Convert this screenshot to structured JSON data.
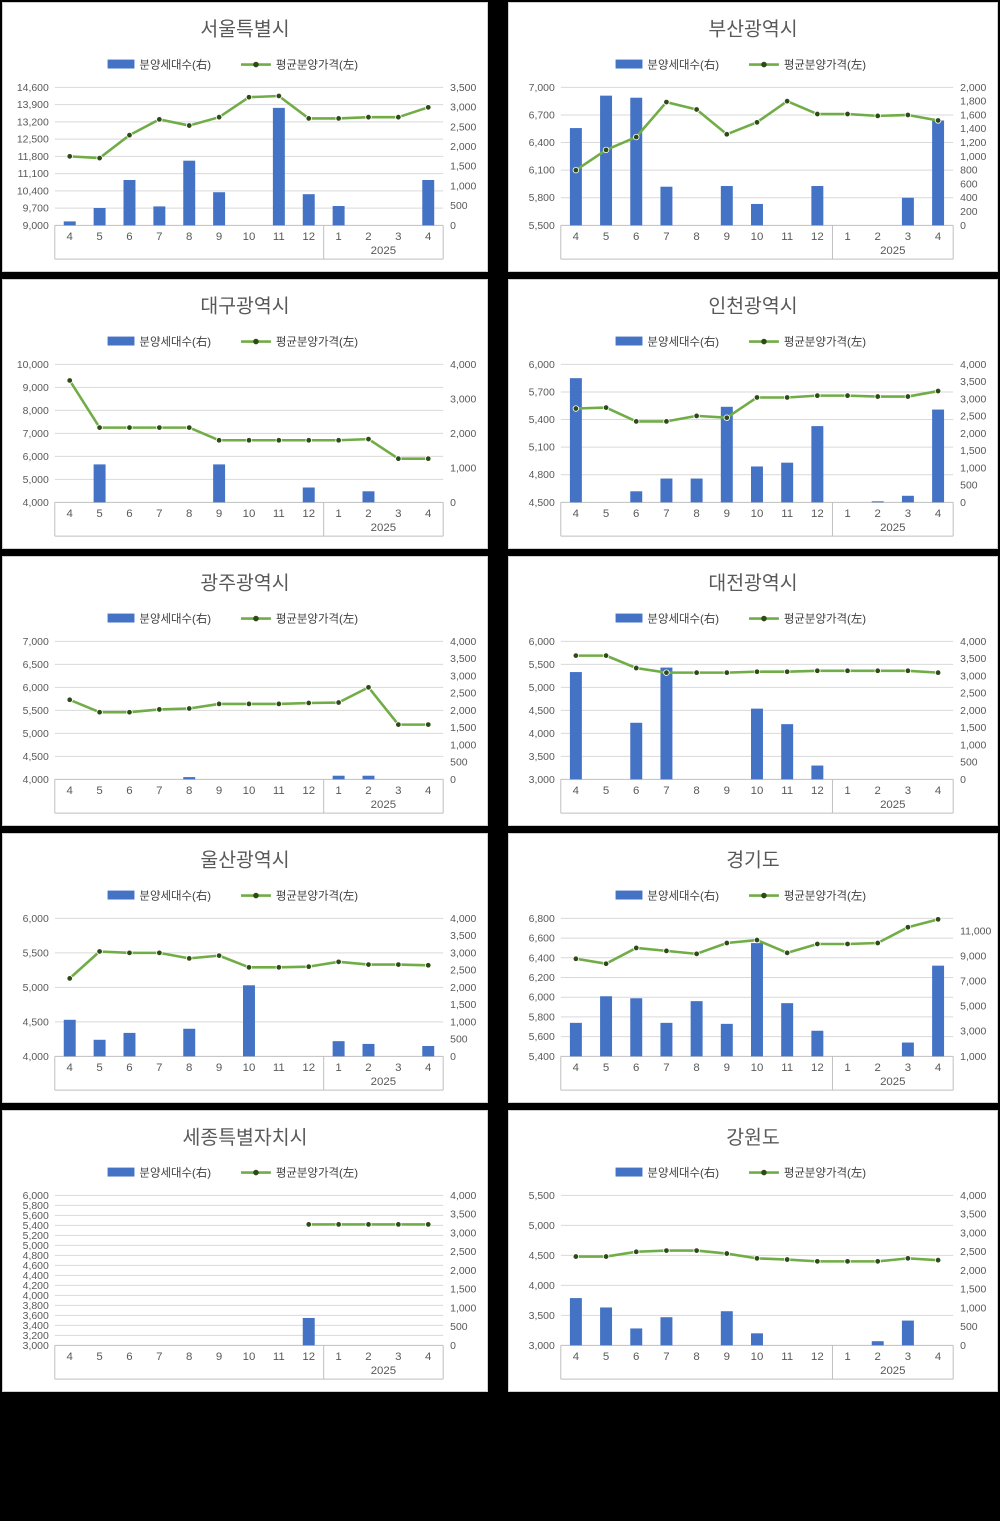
{
  "page": {
    "background": "#000000"
  },
  "legend": {
    "bars_label": "분양세대수(右)",
    "line_label": "평균분양가격(左)"
  },
  "colors": {
    "bar": "#4472C4",
    "line": "#70AD47",
    "marker": "#2d4a17",
    "grid": "#d9d9d9",
    "axis_line": "#bfbfbf",
    "text": "#595959",
    "panel_bg": "#ffffff"
  },
  "chart_data": [
    {
      "type": "bar",
      "title": "서울특별시",
      "categories": [
        "4",
        "5",
        "6",
        "7",
        "8",
        "9",
        "10",
        "11",
        "12",
        "1",
        "2",
        "3",
        "4"
      ],
      "group_label": "2025",
      "group_start_index": 9,
      "left_axis": {
        "min": 9000,
        "max": 14600,
        "step": 700
      },
      "right_axis": {
        "min": 0,
        "max": 3500,
        "step": 500
      },
      "series": [
        {
          "name": "분양세대수(右)",
          "type": "bar",
          "axis": "right",
          "values": [
            100,
            440,
            1150,
            480,
            1640,
            840,
            0,
            2980,
            790,
            490,
            0,
            0,
            1150
          ]
        },
        {
          "name": "평균분양가격(左)",
          "type": "line",
          "axis": "left",
          "values": [
            11800,
            11730,
            12660,
            13300,
            13050,
            13390,
            14200,
            14250,
            13340,
            13340,
            13390,
            13390,
            13790
          ]
        }
      ]
    },
    {
      "type": "bar",
      "title": "부산광역시",
      "categories": [
        "4",
        "5",
        "6",
        "7",
        "8",
        "9",
        "10",
        "11",
        "12",
        "1",
        "2",
        "3",
        "4"
      ],
      "group_label": "2025",
      "group_start_index": 9,
      "left_axis": {
        "min": 5500,
        "max": 7000,
        "step": 300
      },
      "right_axis": {
        "min": 0,
        "max": 2000,
        "step": 200
      },
      "series": [
        {
          "name": "분양세대수(右)",
          "type": "bar",
          "axis": "right",
          "values": [
            1410,
            1880,
            1850,
            560,
            0,
            570,
            310,
            0,
            570,
            0,
            0,
            400,
            1520
          ]
        },
        {
          "name": "평균분양가격(左)",
          "type": "line",
          "axis": "left",
          "values": [
            6100,
            6320,
            6460,
            6840,
            6760,
            6490,
            6620,
            6850,
            6710,
            6710,
            6690,
            6700,
            6640
          ]
        }
      ]
    },
    {
      "type": "bar",
      "title": "대구광역시",
      "categories": [
        "4",
        "5",
        "6",
        "7",
        "8",
        "9",
        "10",
        "11",
        "12",
        "1",
        "2",
        "3",
        "4"
      ],
      "group_label": "2025",
      "group_start_index": 9,
      "left_axis": {
        "min": 4000,
        "max": 10000,
        "step": 1000
      },
      "right_axis": {
        "min": 0,
        "max": 4000,
        "step": 1000
      },
      "series": [
        {
          "name": "분양세대수(右)",
          "type": "bar",
          "axis": "right",
          "values": [
            0,
            1100,
            0,
            0,
            0,
            1100,
            0,
            0,
            430,
            0,
            320,
            0,
            0
          ]
        },
        {
          "name": "평균분양가격(左)",
          "type": "line",
          "axis": "left",
          "values": [
            9300,
            7250,
            7250,
            7250,
            7250,
            6700,
            6700,
            6700,
            6700,
            6700,
            6750,
            5900,
            5900
          ]
        }
      ]
    },
    {
      "type": "bar",
      "title": "인천광역시",
      "categories": [
        "4",
        "5",
        "6",
        "7",
        "8",
        "9",
        "10",
        "11",
        "12",
        "1",
        "2",
        "3",
        "4"
      ],
      "group_label": "2025",
      "group_start_index": 9,
      "left_axis": {
        "min": 4500,
        "max": 6000,
        "step": 300
      },
      "right_axis": {
        "min": 0,
        "max": 4000,
        "step": 500
      },
      "series": [
        {
          "name": "분양세대수(右)",
          "type": "bar",
          "axis": "right",
          "values": [
            3600,
            0,
            320,
            690,
            690,
            2770,
            1040,
            1150,
            2210,
            0,
            30,
            190,
            2690
          ]
        },
        {
          "name": "평균분양가격(左)",
          "type": "line",
          "axis": "left",
          "values": [
            5520,
            5530,
            5380,
            5380,
            5440,
            5420,
            5640,
            5640,
            5660,
            5660,
            5650,
            5650,
            5710
          ]
        }
      ]
    },
    {
      "type": "bar",
      "title": "광주광역시",
      "categories": [
        "4",
        "5",
        "6",
        "7",
        "8",
        "9",
        "10",
        "11",
        "12",
        "1",
        "2",
        "3",
        "4"
      ],
      "group_label": "2025",
      "group_start_index": 9,
      "left_axis": {
        "min": 4000,
        "max": 7000,
        "step": 500
      },
      "right_axis": {
        "min": 0,
        "max": 4000,
        "step": 500
      },
      "series": [
        {
          "name": "분양세대수(右)",
          "type": "bar",
          "axis": "right",
          "values": [
            0,
            0,
            0,
            0,
            65,
            0,
            0,
            0,
            0,
            105,
            105,
            0,
            0
          ]
        },
        {
          "name": "평균분양가격(左)",
          "type": "line",
          "axis": "left",
          "values": [
            5730,
            5460,
            5460,
            5520,
            5540,
            5640,
            5640,
            5640,
            5660,
            5670,
            6000,
            5190,
            5190
          ]
        }
      ]
    },
    {
      "type": "bar",
      "title": "대전광역시",
      "categories": [
        "4",
        "5",
        "6",
        "7",
        "8",
        "9",
        "10",
        "11",
        "12",
        "1",
        "2",
        "3",
        "4"
      ],
      "group_label": "2025",
      "group_start_index": 9,
      "left_axis": {
        "min": 3000,
        "max": 6000,
        "step": 500
      },
      "right_axis": {
        "min": 0,
        "max": 4000,
        "step": 500
      },
      "series": [
        {
          "name": "분양세대수(右)",
          "type": "bar",
          "axis": "right",
          "values": [
            3110,
            0,
            1640,
            3240,
            0,
            0,
            2050,
            1600,
            400,
            0,
            0,
            0,
            0
          ]
        },
        {
          "name": "평균분양가격(左)",
          "type": "line",
          "axis": "left",
          "values": [
            5690,
            5690,
            5420,
            5320,
            5320,
            5320,
            5340,
            5340,
            5360,
            5360,
            5360,
            5360,
            5320
          ]
        }
      ]
    },
    {
      "type": "bar",
      "title": "울산광역시",
      "categories": [
        "4",
        "5",
        "6",
        "7",
        "8",
        "9",
        "10",
        "11",
        "12",
        "1",
        "2",
        "3",
        "4"
      ],
      "group_label": "2025",
      "group_start_index": 9,
      "left_axis": {
        "min": 4000,
        "max": 6000,
        "step": 500
      },
      "right_axis": {
        "min": 0,
        "max": 4000,
        "step": 500
      },
      "series": [
        {
          "name": "분양세대수(右)",
          "type": "bar",
          "axis": "right",
          "values": [
            1060,
            480,
            680,
            0,
            800,
            0,
            2060,
            0,
            0,
            440,
            360,
            0,
            300
          ]
        },
        {
          "name": "평균분양가격(左)",
          "type": "line",
          "axis": "left",
          "values": [
            5130,
            5520,
            5500,
            5500,
            5420,
            5460,
            5290,
            5290,
            5300,
            5370,
            5330,
            5330,
            5320
          ]
        }
      ]
    },
    {
      "type": "bar",
      "title": "경기도",
      "categories": [
        "4",
        "5",
        "6",
        "7",
        "8",
        "9",
        "10",
        "11",
        "12",
        "1",
        "2",
        "3",
        "4"
      ],
      "group_label": "2025",
      "group_start_index": 9,
      "left_axis": {
        "min": 5400,
        "max": 6800,
        "step": 200
      },
      "right_axis": {
        "min": 1000,
        "max": 12000,
        "step": 2000,
        "ticks": [
          1000,
          3000,
          5000,
          7000,
          9000,
          11000
        ]
      },
      "series": [
        {
          "name": "분양세대수(右)",
          "type": "bar",
          "axis": "right",
          "values": [
            3670,
            5790,
            5630,
            3670,
            5400,
            3590,
            10030,
            5240,
            3040,
            0,
            0,
            2100,
            8230
          ]
        },
        {
          "name": "평균분양가격(左)",
          "type": "line",
          "axis": "left",
          "values": [
            6390,
            6340,
            6500,
            6470,
            6440,
            6550,
            6580,
            6450,
            6540,
            6540,
            6550,
            6710,
            6790
          ]
        }
      ]
    },
    {
      "type": "bar",
      "title": "세종특별자치시",
      "categories": [
        "4",
        "5",
        "6",
        "7",
        "8",
        "9",
        "10",
        "11",
        "12",
        "1",
        "2",
        "3",
        "4"
      ],
      "group_label": "2025",
      "group_start_index": 9,
      "left_axis": {
        "min": 3000,
        "max": 6000,
        "step": 200
      },
      "right_axis": {
        "min": 0,
        "max": 4000,
        "step": 500
      },
      "series": [
        {
          "name": "분양세대수(右)",
          "type": "bar",
          "axis": "right",
          "values": [
            0,
            0,
            0,
            0,
            0,
            0,
            0,
            0,
            730,
            0,
            0,
            0,
            0
          ]
        },
        {
          "name": "평균분양가격(左)",
          "type": "line",
          "axis": "left",
          "values": [
            null,
            null,
            null,
            null,
            null,
            null,
            null,
            null,
            5420,
            5420,
            5420,
            5420,
            5420
          ]
        }
      ]
    },
    {
      "type": "bar",
      "title": "강원도",
      "categories": [
        "4",
        "5",
        "6",
        "7",
        "8",
        "9",
        "10",
        "11",
        "12",
        "1",
        "2",
        "3",
        "4"
      ],
      "group_label": "2025",
      "group_start_index": 9,
      "left_axis": {
        "min": 3000,
        "max": 5500,
        "step": 500
      },
      "right_axis": {
        "min": 0,
        "max": 4000,
        "step": 500
      },
      "series": [
        {
          "name": "분양세대수(右)",
          "type": "bar",
          "axis": "right",
          "values": [
            1260,
            1010,
            450,
            750,
            0,
            910,
            320,
            0,
            0,
            0,
            110,
            660,
            0
          ]
        },
        {
          "name": "평균분양가격(左)",
          "type": "line",
          "axis": "left",
          "values": [
            4480,
            4480,
            4560,
            4580,
            4580,
            4530,
            4450,
            4430,
            4400,
            4400,
            4400,
            4450,
            4420
          ]
        }
      ]
    }
  ]
}
